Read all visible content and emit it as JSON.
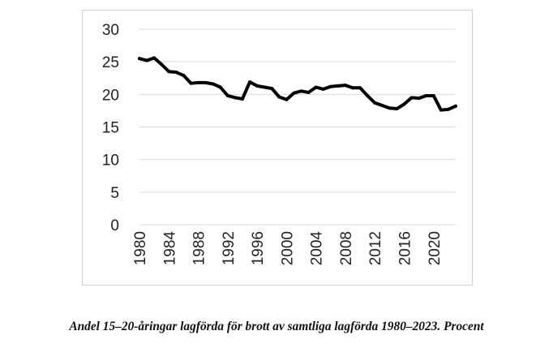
{
  "caption": "Andel 15–20-åringar lagförda för brott av samtliga lagförda 1980–2023. Procent",
  "chart_data": {
    "type": "line",
    "title": "",
    "xlabel": "",
    "ylabel": "",
    "ylim": [
      0,
      30
    ],
    "yticks": [
      0,
      5,
      10,
      15,
      20,
      25,
      30
    ],
    "xticks": [
      1980,
      1984,
      1988,
      1992,
      1996,
      2000,
      2004,
      2008,
      2012,
      2016,
      2020
    ],
    "xlim": [
      1980,
      2023
    ],
    "grid": "horizontal",
    "legend": "none",
    "line_color": "#000000",
    "x": [
      1980,
      1981,
      1982,
      1983,
      1984,
      1985,
      1986,
      1987,
      1988,
      1989,
      1990,
      1991,
      1992,
      1993,
      1994,
      1995,
      1996,
      1997,
      1998,
      1999,
      2000,
      2001,
      2002,
      2003,
      2004,
      2005,
      2006,
      2007,
      2008,
      2009,
      2010,
      2011,
      2012,
      2013,
      2014,
      2015,
      2016,
      2017,
      2018,
      2019,
      2020,
      2021,
      2022,
      2023
    ],
    "series": [
      {
        "values": [
          25.5,
          25.2,
          25.6,
          24.6,
          23.5,
          23.4,
          22.9,
          21.7,
          21.8,
          21.8,
          21.6,
          21.1,
          19.8,
          19.5,
          19.3,
          21.9,
          21.3,
          21.1,
          20.9,
          19.6,
          19.2,
          20.2,
          20.5,
          20.3,
          21.1,
          20.8,
          21.2,
          21.3,
          21.4,
          21.0,
          21.0,
          19.8,
          18.7,
          18.3,
          17.9,
          17.8,
          18.5,
          19.5,
          19.4,
          19.8,
          19.8,
          17.6,
          17.7,
          18.2
        ]
      }
    ]
  }
}
